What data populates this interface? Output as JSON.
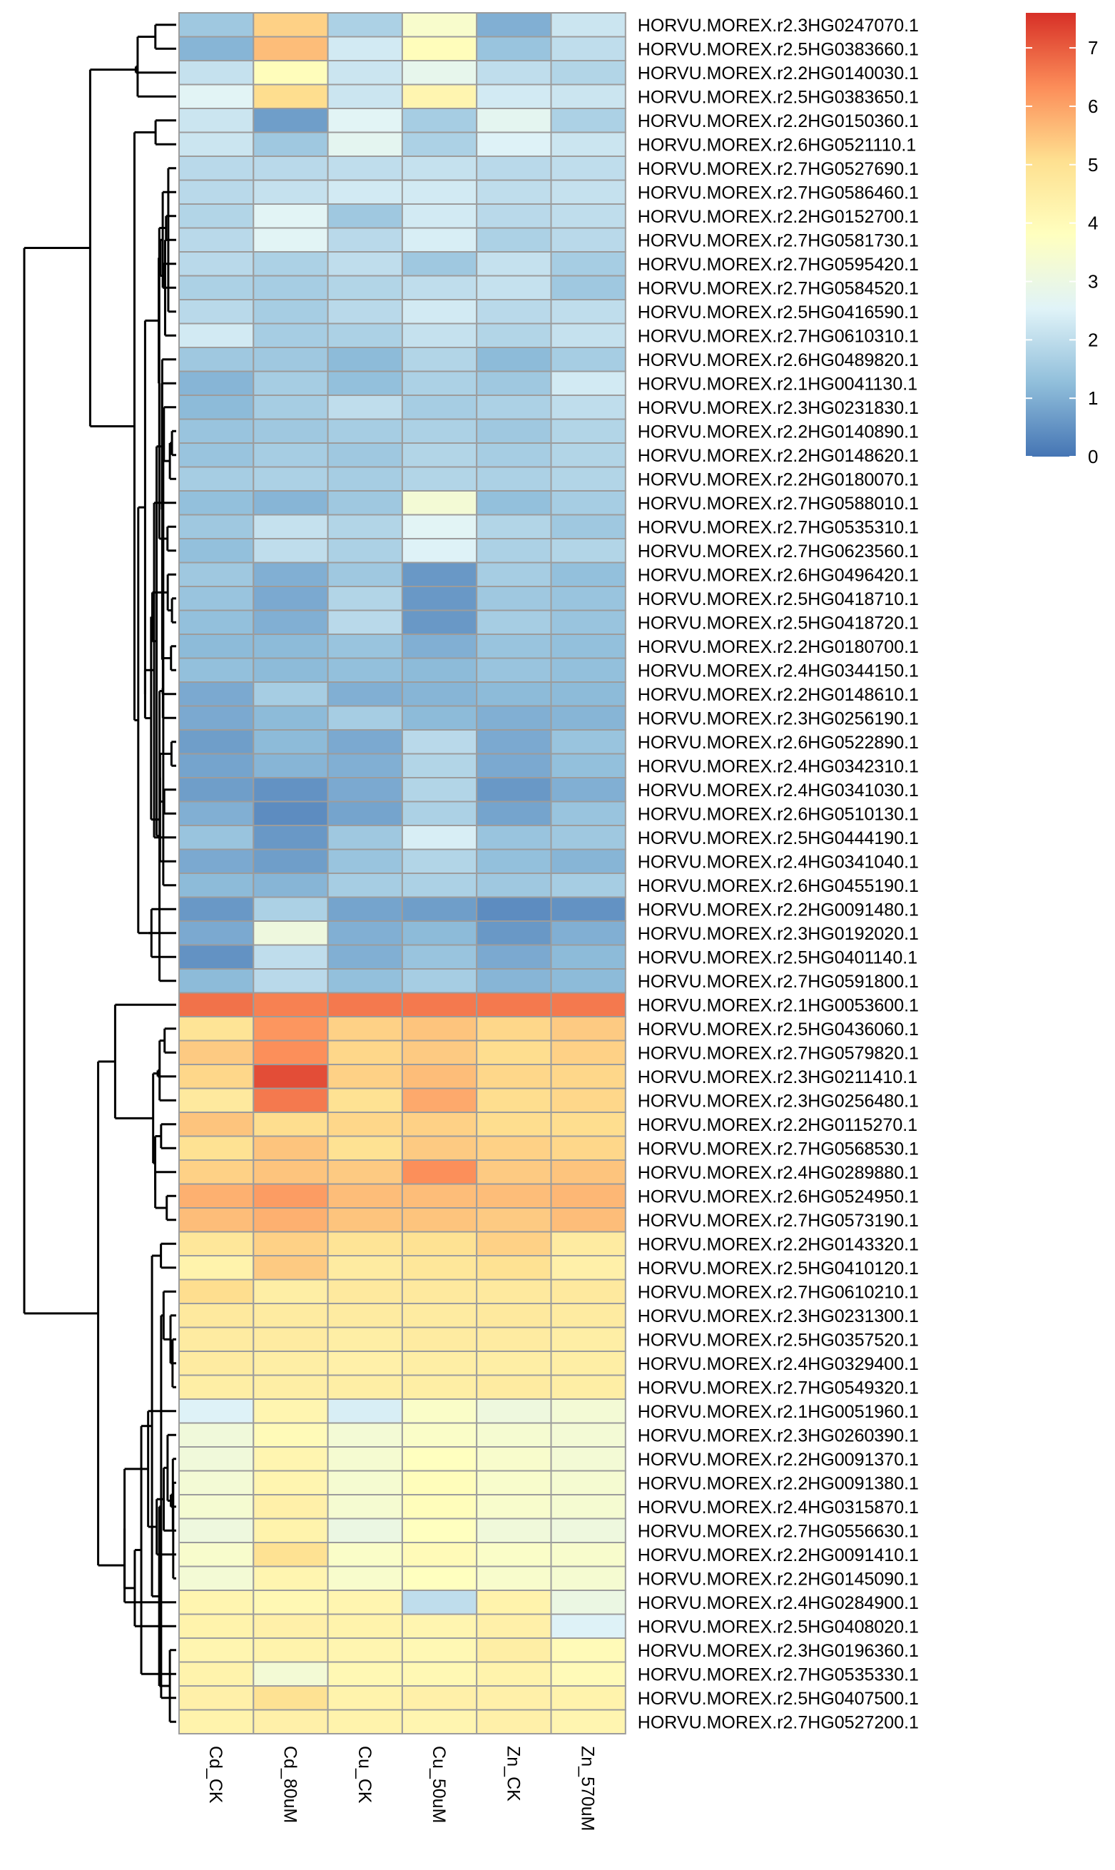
{
  "chart_data": {
    "type": "heatmap",
    "columns": [
      "Cd_CK",
      "Cd_80uM",
      "Cu_CK",
      "Cu_50uM",
      "Zn_CK",
      "Zn_570uM"
    ],
    "rows": [
      {
        "label": "HORVU.MOREX.r2.3HG0247070.1",
        "values": [
          1.5,
          5.3,
          1.7,
          3.5,
          1.0,
          2.2
        ]
      },
      {
        "label": "HORVU.MOREX.r2.5HG0383660.1",
        "values": [
          1.1,
          5.6,
          2.3,
          3.9,
          1.4,
          2.0
        ]
      },
      {
        "label": "HORVU.MOREX.r2.2HG0140030.1",
        "values": [
          2.1,
          3.9,
          2.2,
          2.8,
          2.0,
          1.8
        ]
      },
      {
        "label": "HORVU.MOREX.r2.5HG0383650.1",
        "values": [
          2.6,
          5.1,
          2.2,
          4.2,
          2.3,
          2.2
        ]
      },
      {
        "label": "HORVU.MOREX.r2.2HG0150360.1",
        "values": [
          2.2,
          0.7,
          2.6,
          1.6,
          2.7,
          1.7
        ]
      },
      {
        "label": "HORVU.MOREX.r2.6HG0521110.1",
        "values": [
          2.2,
          1.5,
          2.7,
          1.7,
          2.5,
          2.2
        ]
      },
      {
        "label": "HORVU.MOREX.r2.7HG0527690.1",
        "values": [
          1.9,
          1.9,
          2.0,
          2.1,
          1.9,
          2.0
        ]
      },
      {
        "label": "HORVU.MOREX.r2.7HG0586460.1",
        "values": [
          1.9,
          2.1,
          2.3,
          2.3,
          2.0,
          2.1
        ]
      },
      {
        "label": "HORVU.MOREX.r2.2HG0152700.1",
        "values": [
          1.8,
          2.6,
          1.5,
          2.3,
          1.9,
          2.0
        ]
      },
      {
        "label": "HORVU.MOREX.r2.7HG0581730.1",
        "values": [
          1.9,
          2.6,
          1.9,
          2.4,
          1.7,
          1.9
        ]
      },
      {
        "label": "HORVU.MOREX.r2.7HG0595420.1",
        "values": [
          1.9,
          1.7,
          2.0,
          1.5,
          2.1,
          1.6
        ]
      },
      {
        "label": "HORVU.MOREX.r2.7HG0584520.1",
        "values": [
          1.7,
          1.6,
          1.8,
          2.0,
          2.1,
          1.5
        ]
      },
      {
        "label": "HORVU.MOREX.r2.5HG0416590.1",
        "values": [
          1.9,
          1.6,
          1.9,
          2.3,
          1.9,
          2.0
        ]
      },
      {
        "label": "HORVU.MOREX.r2.7HG0610310.1",
        "values": [
          2.3,
          1.6,
          1.7,
          2.1,
          1.8,
          2.1
        ]
      },
      {
        "label": "HORVU.MOREX.r2.6HG0489820.1",
        "values": [
          1.5,
          1.5,
          1.2,
          1.8,
          1.2,
          1.6
        ]
      },
      {
        "label": "HORVU.MOREX.r2.1HG0041130.1",
        "values": [
          1.1,
          1.6,
          1.3,
          1.7,
          1.5,
          2.3
        ]
      },
      {
        "label": "HORVU.MOREX.r2.3HG0231830.1",
        "values": [
          1.2,
          1.6,
          2.0,
          1.6,
          1.7,
          2.0
        ]
      },
      {
        "label": "HORVU.MOREX.r2.2HG0140890.1",
        "values": [
          1.4,
          1.5,
          1.6,
          1.7,
          1.5,
          1.8
        ]
      },
      {
        "label": "HORVU.MOREX.r2.2HG0148620.1",
        "values": [
          1.4,
          1.6,
          1.5,
          1.8,
          1.6,
          1.8
        ]
      },
      {
        "label": "HORVU.MOREX.r2.2HG0180070.1",
        "values": [
          1.6,
          1.7,
          1.6,
          1.8,
          1.7,
          1.8
        ]
      },
      {
        "label": "HORVU.MOREX.r2.7HG0588010.1",
        "values": [
          1.3,
          1.1,
          1.5,
          3.3,
          1.3,
          1.6
        ]
      },
      {
        "label": "HORVU.MOREX.r2.7HG0535310.1",
        "values": [
          1.5,
          2.1,
          1.8,
          2.6,
          1.8,
          1.5
        ]
      },
      {
        "label": "HORVU.MOREX.r2.7HG0623560.1",
        "values": [
          1.3,
          2.0,
          1.7,
          2.5,
          1.7,
          1.8
        ]
      },
      {
        "label": "HORVU.MOREX.r2.6HG0496420.1",
        "values": [
          1.5,
          1.0,
          1.5,
          0.6,
          1.6,
          1.3
        ]
      },
      {
        "label": "HORVU.MOREX.r2.5HG0418710.1",
        "values": [
          1.4,
          0.9,
          1.8,
          0.6,
          1.5,
          1.4
        ]
      },
      {
        "label": "HORVU.MOREX.r2.5HG0418720.1",
        "values": [
          1.3,
          1.0,
          1.9,
          0.6,
          1.6,
          1.4
        ]
      },
      {
        "label": "HORVU.MOREX.r2.2HG0180700.1",
        "values": [
          1.2,
          1.2,
          1.4,
          1.0,
          1.4,
          1.3
        ]
      },
      {
        "label": "HORVU.MOREX.r2.4HG0344150.1",
        "values": [
          1.3,
          1.2,
          1.3,
          1.2,
          1.4,
          1.3
        ]
      },
      {
        "label": "HORVU.MOREX.r2.2HG0148610.1",
        "values": [
          0.9,
          1.6,
          1.0,
          1.1,
          1.2,
          1.2
        ]
      },
      {
        "label": "HORVU.MOREX.r2.3HG0256190.1",
        "values": [
          0.9,
          1.2,
          1.6,
          1.2,
          1.0,
          1.1
        ]
      },
      {
        "label": "HORVU.MOREX.r2.6HG0522890.1",
        "values": [
          0.7,
          1.2,
          0.9,
          1.9,
          0.9,
          1.4
        ]
      },
      {
        "label": "HORVU.MOREX.r2.4HG0342310.1",
        "values": [
          0.8,
          1.1,
          1.0,
          1.8,
          0.9,
          1.3
        ]
      },
      {
        "label": "HORVU.MOREX.r2.4HG0341030.1",
        "values": [
          0.7,
          0.5,
          0.9,
          1.8,
          0.6,
          1.0
        ]
      },
      {
        "label": "HORVU.MOREX.r2.6HG0510130.1",
        "values": [
          1.0,
          0.4,
          0.8,
          1.7,
          0.8,
          1.4
        ]
      },
      {
        "label": "HORVU.MOREX.r2.5HG0444190.1",
        "values": [
          1.4,
          0.6,
          1.5,
          2.4,
          1.4,
          1.5
        ]
      },
      {
        "label": "HORVU.MOREX.r2.4HG0341040.1",
        "values": [
          0.9,
          0.7,
          1.4,
          1.8,
          1.3,
          1.1
        ]
      },
      {
        "label": "HORVU.MOREX.r2.6HG0455190.1",
        "values": [
          1.2,
          1.1,
          1.6,
          1.7,
          1.5,
          1.6
        ]
      },
      {
        "label": "HORVU.MOREX.r2.2HG0091480.1",
        "values": [
          0.6,
          1.7,
          0.8,
          0.7,
          0.4,
          0.5
        ]
      },
      {
        "label": "HORVU.MOREX.r2.3HG0192020.1",
        "values": [
          0.9,
          3.1,
          1.0,
          1.2,
          0.6,
          1.0
        ]
      },
      {
        "label": "HORVU.MOREX.r2.5HG0401140.1",
        "values": [
          0.5,
          2.0,
          1.0,
          1.4,
          0.9,
          1.2
        ]
      },
      {
        "label": "HORVU.MOREX.r2.7HG0591800.1",
        "values": [
          1.2,
          1.9,
          1.3,
          1.6,
          1.1,
          1.2
        ]
      },
      {
        "label": "HORVU.MOREX.r2.1HG0053600.1",
        "values": [
          6.7,
          6.5,
          6.6,
          6.6,
          6.6,
          6.6
        ]
      },
      {
        "label": "HORVU.MOREX.r2.5HG0436060.1",
        "values": [
          4.9,
          6.2,
          5.3,
          5.5,
          5.2,
          5.4
        ]
      },
      {
        "label": "HORVU.MOREX.r2.7HG0579820.1",
        "values": [
          5.4,
          6.3,
          5.2,
          5.4,
          5.1,
          5.3
        ]
      },
      {
        "label": "HORVU.MOREX.r2.3HG0211410.1",
        "values": [
          5.2,
          7.2,
          5.3,
          5.6,
          5.2,
          5.2
        ]
      },
      {
        "label": "HORVU.MOREX.r2.3HG0256480.1",
        "values": [
          4.7,
          6.6,
          5.0,
          5.9,
          5.1,
          5.2
        ]
      },
      {
        "label": "HORVU.MOREX.r2.2HG0115270.1",
        "values": [
          5.5,
          5.1,
          5.2,
          5.3,
          5.1,
          5.1
        ]
      },
      {
        "label": "HORVU.MOREX.r2.7HG0568530.1",
        "values": [
          5.0,
          5.5,
          5.0,
          5.4,
          5.3,
          5.2
        ]
      },
      {
        "label": "HORVU.MOREX.r2.4HG0289880.1",
        "values": [
          5.3,
          5.5,
          5.4,
          6.3,
          5.4,
          5.5
        ]
      },
      {
        "label": "HORVU.MOREX.r2.6HG0524950.1",
        "values": [
          5.8,
          6.1,
          5.6,
          5.6,
          5.6,
          5.7
        ]
      },
      {
        "label": "HORVU.MOREX.r2.7HG0573190.1",
        "values": [
          5.6,
          5.8,
          5.5,
          5.5,
          5.4,
          5.6
        ]
      },
      {
        "label": "HORVU.MOREX.r2.2HG0143320.1",
        "values": [
          4.8,
          5.3,
          4.9,
          5.0,
          5.3,
          4.6
        ]
      },
      {
        "label": "HORVU.MOREX.r2.5HG0410120.1",
        "values": [
          4.3,
          5.4,
          4.6,
          4.8,
          5.0,
          4.4
        ]
      },
      {
        "label": "HORVU.MOREX.r2.7HG0610210.1",
        "values": [
          5.1,
          4.5,
          4.7,
          4.7,
          4.7,
          4.7
        ]
      },
      {
        "label": "HORVU.MOREX.r2.3HG0231300.1",
        "values": [
          4.7,
          4.6,
          4.6,
          4.6,
          4.7,
          4.6
        ]
      },
      {
        "label": "HORVU.MOREX.r2.5HG0357520.1",
        "values": [
          4.6,
          4.6,
          4.5,
          4.6,
          4.6,
          4.5
        ]
      },
      {
        "label": "HORVU.MOREX.r2.4HG0329400.1",
        "values": [
          4.6,
          4.5,
          4.4,
          4.5,
          4.5,
          4.5
        ]
      },
      {
        "label": "HORVU.MOREX.r2.7HG0549320.1",
        "values": [
          4.5,
          4.5,
          4.5,
          4.5,
          4.6,
          4.5
        ]
      },
      {
        "label": "HORVU.MOREX.r2.1HG0051960.1",
        "values": [
          2.5,
          4.2,
          2.4,
          3.6,
          3.1,
          3.3
        ]
      },
      {
        "label": "HORVU.MOREX.r2.3HG0260390.1",
        "values": [
          3.2,
          4.0,
          3.3,
          3.6,
          3.4,
          3.3
        ]
      },
      {
        "label": "HORVU.MOREX.r2.2HG0091370.1",
        "values": [
          3.2,
          4.2,
          3.4,
          3.8,
          3.5,
          3.3
        ]
      },
      {
        "label": "HORVU.MOREX.r2.2HG0091380.1",
        "values": [
          3.3,
          4.2,
          3.4,
          3.9,
          3.5,
          3.4
        ]
      },
      {
        "label": "HORVU.MOREX.r2.4HG0315870.1",
        "values": [
          3.4,
          4.4,
          3.4,
          3.9,
          3.5,
          3.4
        ]
      },
      {
        "label": "HORVU.MOREX.r2.7HG0556630.1",
        "values": [
          3.1,
          4.3,
          3.0,
          3.8,
          3.2,
          3.1
        ]
      },
      {
        "label": "HORVU.MOREX.r2.2HG0091410.1",
        "values": [
          3.5,
          5.0,
          3.6,
          4.0,
          3.6,
          3.5
        ]
      },
      {
        "label": "HORVU.MOREX.r2.2HG0145090.1",
        "values": [
          3.3,
          4.2,
          3.5,
          3.8,
          3.5,
          3.4
        ]
      },
      {
        "label": "HORVU.MOREX.r2.4HG0284900.1",
        "values": [
          4.2,
          4.1,
          4.2,
          2.0,
          4.3,
          3.0
        ]
      },
      {
        "label": "HORVU.MOREX.r2.5HG0408020.1",
        "values": [
          4.3,
          4.4,
          4.3,
          4.2,
          4.4,
          2.5
        ]
      },
      {
        "label": "HORVU.MOREX.r2.3HG0196360.1",
        "values": [
          4.2,
          4.3,
          4.2,
          4.1,
          4.5,
          4.0
        ]
      },
      {
        "label": "HORVU.MOREX.r2.7HG0535330.1",
        "values": [
          4.3,
          3.3,
          4.1,
          4.1,
          4.3,
          4.0
        ]
      },
      {
        "label": "HORVU.MOREX.r2.5HG0407500.1",
        "values": [
          4.4,
          5.0,
          4.3,
          4.4,
          4.4,
          4.3
        ]
      },
      {
        "label": "HORVU.MOREX.r2.7HG0527200.1",
        "values": [
          4.3,
          4.4,
          4.3,
          4.2,
          4.4,
          4.2
        ]
      }
    ],
    "color_scale": {
      "min": 0,
      "max": 7.6,
      "ticks": [
        0,
        1,
        2,
        3,
        4,
        5,
        6,
        7
      ],
      "stops": [
        {
          "value": 0,
          "color": "#4575B4"
        },
        {
          "value": 1.27,
          "color": "#91BFDB"
        },
        {
          "value": 2.53,
          "color": "#E0F3F8"
        },
        {
          "value": 3.8,
          "color": "#FFFFBF"
        },
        {
          "value": 5.07,
          "color": "#FEE090"
        },
        {
          "value": 6.33,
          "color": "#FC8D59"
        },
        {
          "value": 7.6,
          "color": "#D73027"
        }
      ]
    },
    "cell_border_color": "#9C9C9C",
    "dendrogram": "rows"
  }
}
